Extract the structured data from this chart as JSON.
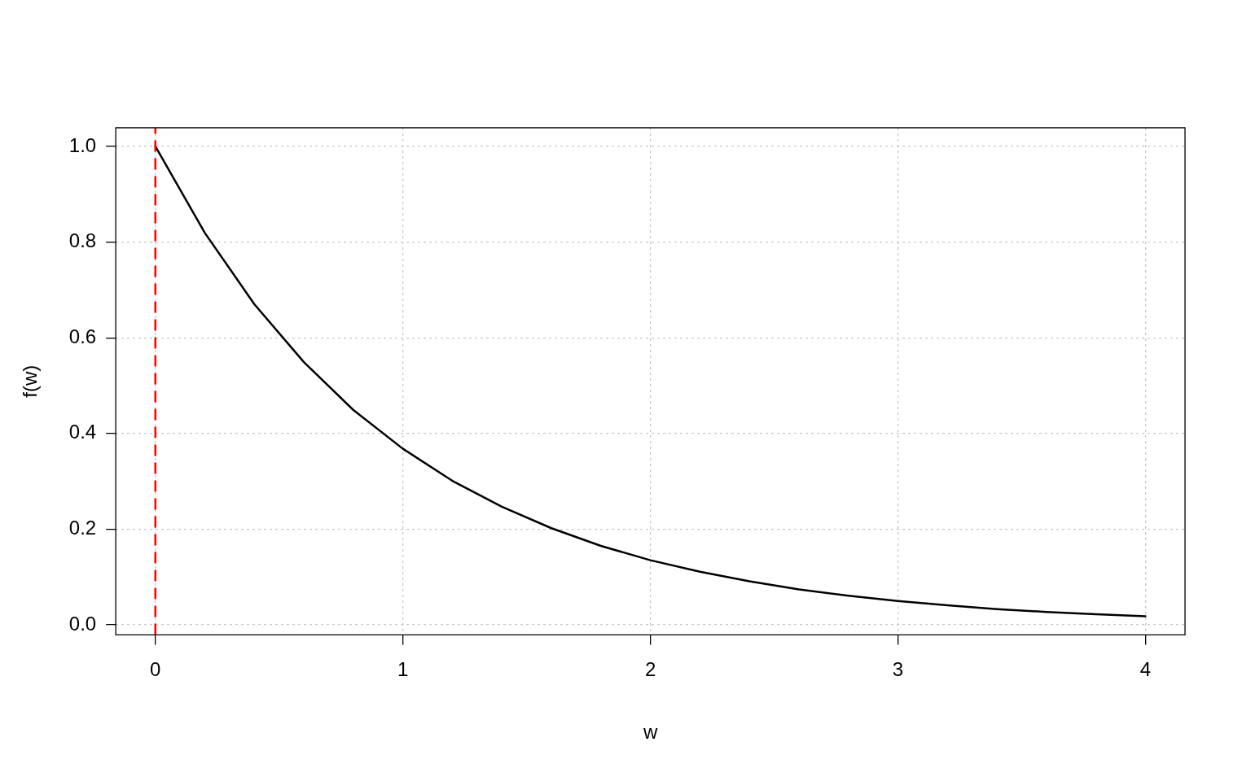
{
  "chart_data": {
    "type": "line",
    "xlabel": "w",
    "ylabel": "f(w)",
    "xlim": [
      -0.16,
      4.16
    ],
    "ylim": [
      -0.021,
      1.039
    ],
    "xticks": [
      0,
      1,
      2,
      3,
      4
    ],
    "yticks": [
      {
        "value": 0,
        "label": "0.0"
      },
      {
        "value": 0.2,
        "label": "0.2"
      },
      {
        "value": 0.4,
        "label": "0.4"
      },
      {
        "value": 0.6,
        "label": "0.6"
      },
      {
        "value": 0.8,
        "label": "0.8"
      },
      {
        "value": 1,
        "label": "1.0"
      }
    ],
    "x": [
      0,
      0.2,
      0.4,
      0.6,
      0.8,
      1.0,
      1.2,
      1.4,
      1.6,
      1.8,
      2.0,
      2.2,
      2.4,
      2.6,
      2.8,
      3.0,
      3.2,
      3.4,
      3.6,
      3.8,
      4.0
    ],
    "series": [
      {
        "color": "#000000",
        "values": [
          1.0,
          0.819,
          0.67,
          0.549,
          0.449,
          0.368,
          0.301,
          0.247,
          0.202,
          0.165,
          0.135,
          0.111,
          0.091,
          0.074,
          0.061,
          0.05,
          0.041,
          0.033,
          0.027,
          0.022,
          0.018
        ]
      }
    ],
    "ref_lines": [
      {
        "axis": "x",
        "value": 0,
        "color": "#ff0000",
        "line_style": "dashed"
      }
    ],
    "grid": true,
    "legend": false,
    "marker": "none",
    "line_style": "solid"
  }
}
